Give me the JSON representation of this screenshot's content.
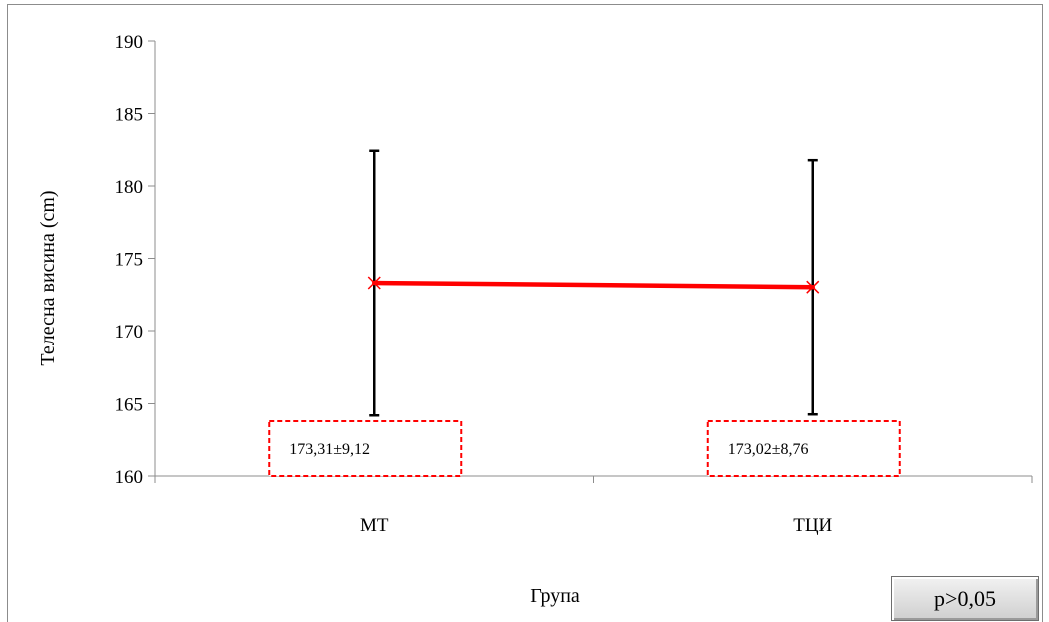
{
  "chart_data": {
    "type": "line",
    "categories": [
      "МТ",
      "ТЦИ"
    ],
    "series": [
      {
        "values": [
          173.31,
          173.02
        ],
        "error": [
          9.12,
          8.76
        ],
        "color": "#ff0000"
      }
    ],
    "error_bar_color": "#000000",
    "annotations": [
      "173,31±9,12",
      "173,02±8,76"
    ],
    "annotation_border_color": "#ff0000",
    "yticks": [
      "160",
      "165",
      "170",
      "175",
      "180",
      "185",
      "190"
    ],
    "ylim": [
      160,
      190
    ],
    "ylabel": "Телесна висина (cm)",
    "xlabel": "Група",
    "grid": false,
    "legend": "none"
  },
  "significance": "p>0,05"
}
